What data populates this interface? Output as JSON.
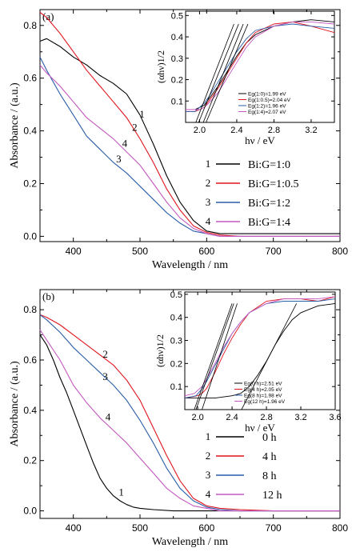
{
  "chart_data": [
    {
      "id": "a",
      "type": "line",
      "panel_label": "(a)",
      "xlabel": "Wavelength / nm",
      "ylabel": "Absorbance / (a.u.)",
      "xlim": [
        350,
        800
      ],
      "ylim": [
        -0.02,
        0.86
      ],
      "xticks": [
        400,
        500,
        600,
        700,
        800
      ],
      "yticks": [
        0.0,
        0.2,
        0.4,
        0.6,
        0.8
      ],
      "xtick_labels": [
        "400",
        "500",
        "600",
        "700",
        "800"
      ],
      "ytick_labels": [
        "0.0",
        "0.2",
        "0.4",
        "0.6",
        "0.8"
      ],
      "legend": [
        {
          "num": "1",
          "label": "Bi:G=1:0",
          "color": "#000000"
        },
        {
          "num": "2",
          "label": "Bi:G=1:0.5",
          "color": "#e0141e"
        },
        {
          "num": "3",
          "label": "Bi:G=1:2",
          "color": "#2a5da8"
        },
        {
          "num": "4",
          "label": "Bi:G=1:4",
          "color": "#c457c0"
        }
      ],
      "series": [
        {
          "color": "#000000",
          "x": [
            350,
            360,
            380,
            400,
            420,
            440,
            460,
            480,
            500,
            520,
            540,
            560,
            580,
            600,
            620,
            650,
            700,
            750,
            800
          ],
          "y": [
            0.74,
            0.75,
            0.72,
            0.68,
            0.65,
            0.61,
            0.58,
            0.54,
            0.46,
            0.35,
            0.23,
            0.13,
            0.06,
            0.02,
            0.01,
            0.01,
            0.01,
            0.01,
            0.01
          ]
        },
        {
          "color": "#e0141e",
          "x": [
            350,
            360,
            380,
            400,
            420,
            440,
            460,
            480,
            500,
            520,
            540,
            560,
            580,
            600,
            620,
            650,
            700,
            750,
            800
          ],
          "y": [
            0.85,
            0.83,
            0.77,
            0.7,
            0.63,
            0.57,
            0.51,
            0.45,
            0.37,
            0.28,
            0.18,
            0.1,
            0.04,
            0.015,
            0.005,
            0.0,
            0.0,
            0.0,
            0.0
          ]
        },
        {
          "color": "#2a5da8",
          "x": [
            350,
            360,
            380,
            400,
            420,
            440,
            460,
            480,
            500,
            520,
            540,
            560,
            580,
            600,
            620,
            650,
            700,
            750,
            800
          ],
          "y": [
            0.68,
            0.63,
            0.54,
            0.46,
            0.38,
            0.33,
            0.28,
            0.24,
            0.19,
            0.14,
            0.09,
            0.05,
            0.02,
            0.01,
            0.0,
            0.0,
            0.0,
            0.0,
            0.0
          ]
        },
        {
          "color": "#c457c0",
          "x": [
            350,
            360,
            380,
            400,
            420,
            440,
            460,
            480,
            500,
            520,
            540,
            560,
            580,
            600,
            620,
            650,
            700,
            750,
            800
          ],
          "y": [
            0.65,
            0.62,
            0.57,
            0.51,
            0.45,
            0.41,
            0.37,
            0.32,
            0.27,
            0.2,
            0.13,
            0.07,
            0.03,
            0.01,
            0.0,
            0.0,
            0.0,
            0.0,
            0.0
          ]
        }
      ],
      "curve_labels": [
        {
          "text": "1",
          "x": 503,
          "y": 0.45
        },
        {
          "text": "2",
          "x": 492,
          "y": 0.4
        },
        {
          "text": "3",
          "x": 468,
          "y": 0.28
        },
        {
          "text": "4",
          "x": 477,
          "y": 0.34
        }
      ],
      "inset": {
        "xlabel": "hν / eV",
        "ylabel": "(αhν)1/2",
        "xlim": [
          1.85,
          3.45
        ],
        "ylim": [
          0,
          0.52
        ],
        "xticks": [
          2.0,
          2.4,
          2.8,
          3.2
        ],
        "xtick_labels": [
          "2.0",
          "2.4",
          "2.8",
          "3.2"
        ],
        "yticks": [
          0.1,
          0.2,
          0.3,
          0.4,
          0.5
        ],
        "ytick_labels": [
          "0.1",
          "0.2",
          "0.3",
          "0.4",
          "0.5"
        ],
        "legend": [
          {
            "label": "Eg(1:0)=1.99 eV",
            "color": "#000000"
          },
          {
            "label": "Eg(1:0.5)=2.04 eV",
            "color": "#e0141e"
          },
          {
            "label": "Eg(1:2)=1.96 eV",
            "color": "#2a5da8"
          },
          {
            "label": "Eg(1:4)=2.07 eV",
            "color": "#c457c0"
          }
        ],
        "series": [
          {
            "color": "#000000",
            "x": [
              1.85,
              1.95,
              2.0,
              2.05,
              2.1,
              2.2,
              2.3,
              2.4,
              2.5,
              2.6,
              2.8,
              3.0,
              3.2,
              3.45
            ],
            "y": [
              0.06,
              0.06,
              0.07,
              0.08,
              0.11,
              0.17,
              0.24,
              0.31,
              0.37,
              0.41,
              0.45,
              0.47,
              0.48,
              0.47
            ]
          },
          {
            "color": "#e0141e",
            "x": [
              1.85,
              1.95,
              2.0,
              2.05,
              2.1,
              2.2,
              2.3,
              2.4,
              2.5,
              2.6,
              2.8,
              3.0,
              3.2,
              3.45
            ],
            "y": [
              0.05,
              0.05,
              0.06,
              0.07,
              0.1,
              0.16,
              0.23,
              0.3,
              0.37,
              0.42,
              0.46,
              0.47,
              0.45,
              0.42
            ]
          },
          {
            "color": "#2a5da8",
            "x": [
              1.85,
              1.95,
              2.0,
              2.05,
              2.1,
              2.2,
              2.3,
              2.4,
              2.5,
              2.6,
              2.8,
              3.0,
              3.2,
              3.45
            ],
            "y": [
              0.05,
              0.05,
              0.07,
              0.09,
              0.12,
              0.19,
              0.26,
              0.33,
              0.39,
              0.43,
              0.45,
              0.46,
              0.45,
              0.44
            ]
          },
          {
            "color": "#c457c0",
            "x": [
              1.85,
              1.95,
              2.0,
              2.05,
              2.1,
              2.2,
              2.3,
              2.4,
              2.5,
              2.6,
              2.8,
              3.0,
              3.2,
              3.45
            ],
            "y": [
              0.06,
              0.06,
              0.06,
              0.07,
              0.09,
              0.14,
              0.21,
              0.28,
              0.35,
              0.4,
              0.45,
              0.47,
              0.47,
              0.46
            ]
          }
        ],
        "fits": [
          {
            "x1": 1.99,
            "x2": 2.42
          },
          {
            "x1": 2.04,
            "x2": 2.47
          },
          {
            "x1": 1.96,
            "x2": 2.37
          },
          {
            "x1": 2.07,
            "x2": 2.52
          }
        ]
      }
    },
    {
      "id": "b",
      "type": "line",
      "panel_label": "(b)",
      "xlabel": "Wavelength / nm",
      "ylabel": "Absorbance / (a.u.)",
      "xlim": [
        350,
        800
      ],
      "ylim": [
        -0.03,
        0.88
      ],
      "xticks": [
        400,
        500,
        600,
        700,
        800
      ],
      "yticks": [
        0.0,
        0.2,
        0.4,
        0.6,
        0.8
      ],
      "xtick_labels": [
        "400",
        "500",
        "600",
        "700",
        "800"
      ],
      "ytick_labels": [
        "0.0",
        "0.2",
        "0.4",
        "0.6",
        "0.8"
      ],
      "legend": [
        {
          "num": "1",
          "label": "0 h",
          "color": "#000000"
        },
        {
          "num": "2",
          "label": "4 h",
          "color": "#e0141e"
        },
        {
          "num": "3",
          "label": "8 h",
          "color": "#2a5da8"
        },
        {
          "num": "4",
          "label": "12 h",
          "color": "#c457c0"
        }
      ],
      "series": [
        {
          "color": "#000000",
          "x": [
            350,
            360,
            370,
            380,
            390,
            400,
            410,
            420,
            430,
            440,
            450,
            460,
            470,
            480,
            490,
            500,
            520,
            550,
            600,
            650,
            700,
            800
          ],
          "y": [
            0.7,
            0.66,
            0.6,
            0.53,
            0.47,
            0.4,
            0.33,
            0.26,
            0.19,
            0.13,
            0.09,
            0.06,
            0.04,
            0.025,
            0.015,
            0.01,
            0.005,
            0.0,
            0.0,
            0.0,
            0.0,
            0.0
          ]
        },
        {
          "color": "#e0141e",
          "x": [
            350,
            360,
            380,
            400,
            420,
            440,
            460,
            480,
            500,
            520,
            540,
            560,
            580,
            600,
            620,
            650,
            700,
            750,
            800
          ],
          "y": [
            0.78,
            0.77,
            0.74,
            0.7,
            0.66,
            0.62,
            0.58,
            0.52,
            0.44,
            0.33,
            0.22,
            0.12,
            0.05,
            0.02,
            0.01,
            0.005,
            0.0,
            0.0,
            0.0
          ]
        },
        {
          "color": "#2a5da8",
          "x": [
            350,
            360,
            380,
            400,
            420,
            440,
            460,
            480,
            500,
            520,
            540,
            560,
            580,
            600,
            620,
            650,
            700,
            750,
            800
          ],
          "y": [
            0.78,
            0.76,
            0.71,
            0.65,
            0.6,
            0.55,
            0.5,
            0.44,
            0.36,
            0.27,
            0.17,
            0.09,
            0.04,
            0.015,
            0.005,
            0.0,
            0.0,
            0.0,
            0.0
          ]
        },
        {
          "color": "#c457c0",
          "x": [
            350,
            360,
            380,
            400,
            420,
            440,
            460,
            480,
            500,
            520,
            540,
            560,
            580,
            600,
            620,
            650,
            700,
            750,
            800
          ],
          "y": [
            0.72,
            0.68,
            0.6,
            0.5,
            0.43,
            0.37,
            0.32,
            0.27,
            0.21,
            0.15,
            0.09,
            0.05,
            0.02,
            0.01,
            0.0,
            0.0,
            0.0,
            0.0,
            0.0
          ]
        }
      ],
      "curve_labels": [
        {
          "text": "1",
          "x": 472,
          "y": 0.06
        },
        {
          "text": "2",
          "x": 448,
          "y": 0.61
        },
        {
          "text": "3",
          "x": 448,
          "y": 0.52
        },
        {
          "text": "4",
          "x": 452,
          "y": 0.36
        }
      ],
      "inset": {
        "xlabel": "hν / eV",
        "ylabel": "(αhν)1/2",
        "xlim": [
          1.85,
          3.6
        ],
        "ylim": [
          0,
          0.51
        ],
        "xticks": [
          2.0,
          2.4,
          2.8,
          3.2,
          3.6
        ],
        "xtick_labels": [
          "2.0",
          "2.4",
          "2.8",
          "3.2",
          "3.6"
        ],
        "yticks": [
          0.1,
          0.2,
          0.3,
          0.4,
          0.5
        ],
        "ytick_labels": [
          "0.1",
          "0.2",
          "0.3",
          "0.4",
          "0.5"
        ],
        "legend": [
          {
            "label": "Eg(0 h)=2.51 eV",
            "color": "#000000"
          },
          {
            "label": "Eg(4 h)=2.05 eV",
            "color": "#e0141e"
          },
          {
            "label": "Eg(8 h)=1.98 eV",
            "color": "#2a5da8"
          },
          {
            "label": "Eg(12 h)=1.96 eV",
            "color": "#c457c0"
          }
        ],
        "series": [
          {
            "color": "#000000",
            "x": [
              1.85,
              2.0,
              2.2,
              2.4,
              2.5,
              2.6,
              2.7,
              2.8,
              2.9,
              3.0,
              3.1,
              3.2,
              3.4,
              3.6
            ],
            "y": [
              0.05,
              0.05,
              0.05,
              0.06,
              0.07,
              0.1,
              0.15,
              0.21,
              0.28,
              0.34,
              0.39,
              0.42,
              0.45,
              0.46
            ]
          },
          {
            "color": "#e0141e",
            "x": [
              1.85,
              2.0,
              2.05,
              2.1,
              2.2,
              2.3,
              2.4,
              2.5,
              2.6,
              2.8,
              3.0,
              3.2,
              3.4,
              3.6
            ],
            "y": [
              0.05,
              0.06,
              0.07,
              0.09,
              0.16,
              0.24,
              0.31,
              0.37,
              0.42,
              0.47,
              0.48,
              0.48,
              0.47,
              0.49
            ]
          },
          {
            "color": "#2a5da8",
            "x": [
              1.85,
              1.98,
              2.05,
              2.1,
              2.2,
              2.3,
              2.4,
              2.5,
              2.6,
              2.8,
              3.0,
              3.2,
              3.4,
              3.6
            ],
            "y": [
              0.05,
              0.06,
              0.09,
              0.12,
              0.19,
              0.26,
              0.33,
              0.38,
              0.42,
              0.46,
              0.47,
              0.47,
              0.47,
              0.48
            ]
          },
          {
            "color": "#c457c0",
            "x": [
              1.85,
              1.96,
              2.05,
              2.1,
              2.2,
              2.3,
              2.4,
              2.5,
              2.6,
              2.8,
              3.0,
              3.2,
              3.4,
              3.6
            ],
            "y": [
              0.06,
              0.07,
              0.1,
              0.13,
              0.2,
              0.27,
              0.33,
              0.38,
              0.42,
              0.46,
              0.48,
              0.48,
              0.48,
              0.49
            ]
          }
        ],
        "fits": [
          {
            "x1": 2.51,
            "x2": 3.15
          },
          {
            "x1": 2.05,
            "x2": 2.46
          },
          {
            "x1": 1.98,
            "x2": 2.42
          },
          {
            "x1": 1.96,
            "x2": 2.4
          }
        ]
      }
    }
  ]
}
